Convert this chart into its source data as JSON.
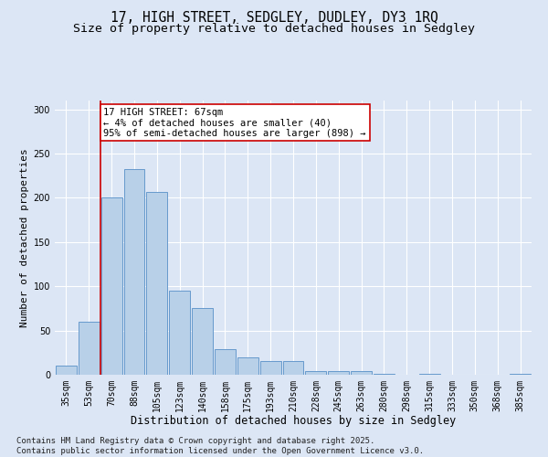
{
  "title": "17, HIGH STREET, SEDGLEY, DUDLEY, DY3 1RQ",
  "subtitle": "Size of property relative to detached houses in Sedgley",
  "xlabel": "Distribution of detached houses by size in Sedgley",
  "ylabel": "Number of detached properties",
  "categories": [
    "35sqm",
    "53sqm",
    "70sqm",
    "88sqm",
    "105sqm",
    "123sqm",
    "140sqm",
    "158sqm",
    "175sqm",
    "193sqm",
    "210sqm",
    "228sqm",
    "245sqm",
    "263sqm",
    "280sqm",
    "298sqm",
    "315sqm",
    "333sqm",
    "350sqm",
    "368sqm",
    "385sqm"
  ],
  "values": [
    10,
    60,
    200,
    233,
    207,
    95,
    75,
    29,
    20,
    15,
    15,
    4,
    4,
    4,
    1,
    0,
    1,
    0,
    0,
    0,
    1
  ],
  "bar_color": "#b8d0e8",
  "bar_edge_color": "#6699cc",
  "vline_color": "#cc0000",
  "vline_x_index": 1.5,
  "annotation_text": "17 HIGH STREET: 67sqm\n← 4% of detached houses are smaller (40)\n95% of semi-detached houses are larger (898) →",
  "annotation_box_facecolor": "#ffffff",
  "annotation_box_edgecolor": "#cc0000",
  "ylim": [
    0,
    310
  ],
  "yticks": [
    0,
    50,
    100,
    150,
    200,
    250,
    300
  ],
  "background_color": "#dce6f5",
  "grid_color": "#ffffff",
  "footer_text": "Contains HM Land Registry data © Crown copyright and database right 2025.\nContains public sector information licensed under the Open Government Licence v3.0.",
  "title_fontsize": 10.5,
  "subtitle_fontsize": 9.5,
  "xlabel_fontsize": 8.5,
  "ylabel_fontsize": 8,
  "tick_fontsize": 7,
  "annotation_fontsize": 7.5,
  "footer_fontsize": 6.5
}
